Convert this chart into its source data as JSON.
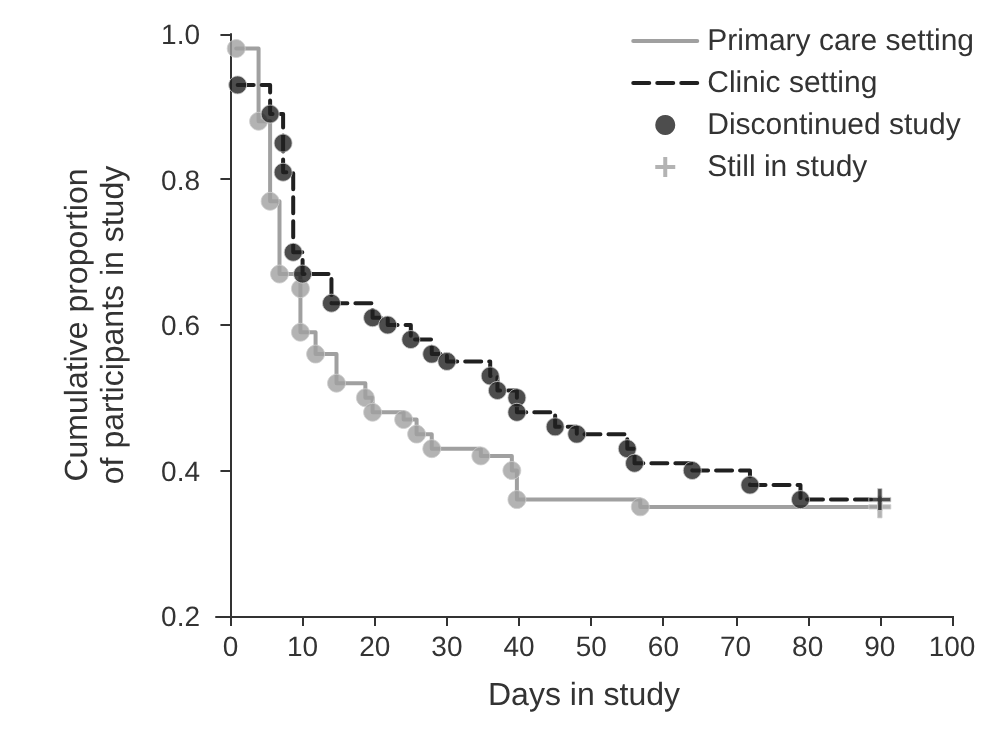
{
  "chart_data": {
    "type": "step",
    "xlabel": "Days in study",
    "ylabel": "Cumulative proportion of participants in study",
    "xlim": [
      -2,
      100
    ],
    "xticks": [
      0,
      10,
      20,
      30,
      40,
      50,
      60,
      70,
      80,
      90,
      100
    ],
    "ylim": [
      0.2,
      1.0
    ],
    "yticks": [
      0.2,
      0.4,
      0.6,
      0.8,
      {
        "value": 1,
        "label": "1.0"
      }
    ],
    "grid": false,
    "legend": "top right",
    "series": [
      {
        "name": "Primary care setting",
        "color": "#a0a0a0",
        "line_style": "solid",
        "marker": "none",
        "x": [
          0.8,
          3.9,
          5.5,
          6.8,
          9.7,
          9.7,
          11.8,
          14.7,
          18.7,
          19.7,
          24,
          25.8,
          27.9,
          34.7,
          39,
          39.7,
          56.8,
          90
        ],
        "values": [
          0.98,
          0.88,
          0.77,
          0.67,
          0.65,
          0.59,
          0.56,
          0.52,
          0.5,
          0.48,
          0.47,
          0.45,
          0.43,
          0.42,
          0.4,
          0.36,
          0.35,
          0.35
        ]
      },
      {
        "name": "Clinic setting",
        "color": "#202020",
        "line_style": "dashed",
        "marker": "none",
        "x": [
          1,
          5.5,
          7.3,
          7.3,
          8.7,
          10,
          14,
          19.7,
          21.8,
          25,
          27.9,
          30,
          36,
          37,
          39.7,
          39.7,
          45,
          48,
          55,
          56,
          64,
          72,
          79,
          90
        ],
        "values": [
          0.93,
          0.89,
          0.85,
          0.81,
          0.7,
          0.67,
          0.63,
          0.61,
          0.6,
          0.58,
          0.56,
          0.55,
          0.53,
          0.51,
          0.5,
          0.48,
          0.46,
          0.45,
          0.43,
          0.41,
          0.4,
          0.38,
          0.36,
          0.36
        ]
      },
      {
        "name": "Discontinued study",
        "type": "scatter",
        "color": "#202020",
        "marker": "circle",
        "x": [
          0.8,
          3.9,
          5.5,
          6.8,
          9.7,
          9.7,
          11.8,
          14.7,
          18.7,
          19.7,
          24,
          25.8,
          27.9,
          34.7,
          39,
          39.7,
          56.8,
          1,
          5.5,
          7.3,
          7.3,
          8.7,
          10,
          14,
          19.7,
          21.8,
          25,
          27.9,
          30,
          36,
          37,
          39.7,
          39.7,
          45,
          48,
          55,
          56,
          64,
          72,
          79
        ],
        "values": [
          0.98,
          0.88,
          0.77,
          0.67,
          0.65,
          0.59,
          0.56,
          0.52,
          0.5,
          0.48,
          0.47,
          0.45,
          0.43,
          0.42,
          0.4,
          0.36,
          0.35,
          0.93,
          0.89,
          0.85,
          0.81,
          0.7,
          0.67,
          0.63,
          0.61,
          0.6,
          0.58,
          0.56,
          0.55,
          0.53,
          0.51,
          0.5,
          0.48,
          0.46,
          0.45,
          0.43,
          0.41,
          0.4,
          0.38,
          0.36
        ],
        "colors": [
          "#a0a0a0",
          "#a0a0a0",
          "#a0a0a0",
          "#a0a0a0",
          "#a0a0a0",
          "#a0a0a0",
          "#a0a0a0",
          "#a0a0a0",
          "#a0a0a0",
          "#a0a0a0",
          "#a0a0a0",
          "#a0a0a0",
          "#a0a0a0",
          "#a0a0a0",
          "#a0a0a0",
          "#a0a0a0",
          "#a0a0a0",
          "#202020",
          "#202020",
          "#202020",
          "#202020",
          "#202020",
          "#202020",
          "#202020",
          "#202020",
          "#202020",
          "#202020",
          "#202020",
          "#202020",
          "#202020",
          "#202020",
          "#202020",
          "#202020",
          "#202020",
          "#202020",
          "#202020",
          "#202020",
          "#202020",
          "#202020",
          "#202020"
        ]
      },
      {
        "name": "Still in study",
        "type": "scatter",
        "color": "#a0a0a0",
        "marker": "cross",
        "x": [
          90,
          90
        ],
        "values": [
          0.35,
          0.36
        ],
        "colors": [
          "#a0a0a0",
          "#202020"
        ]
      }
    ]
  }
}
